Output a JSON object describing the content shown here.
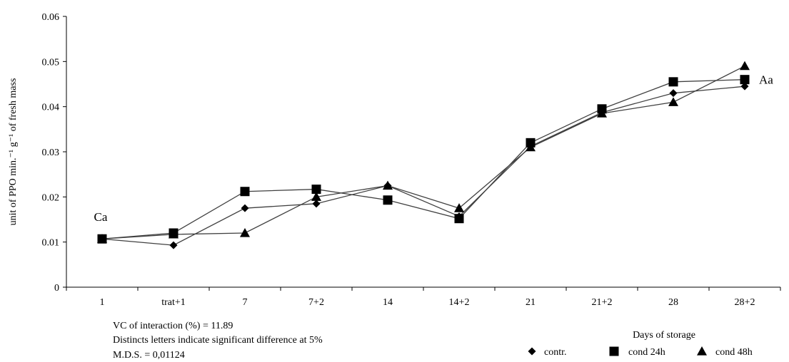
{
  "chart_data": {
    "type": "line",
    "categories": [
      "1",
      "trat+1",
      "7",
      "7+2",
      "14",
      "14+2",
      "21",
      "21+2",
      "28",
      "28+2"
    ],
    "ylabel": "unit of PPO min.⁻¹ g⁻¹ of fresh mass",
    "xlabel": "Days of storage",
    "ylim": [
      0,
      0.06
    ],
    "yticks": [
      "0",
      "0.01",
      "0.02",
      "0.03",
      "0.04",
      "0.05",
      "0.06"
    ],
    "grid": false,
    "legend_position": "bottom-right",
    "series": [
      {
        "name": "contr.",
        "marker": "diamond",
        "values": [
          0.0107,
          0.0093,
          0.0175,
          0.0185,
          0.0225,
          0.0157,
          0.0312,
          0.0387,
          0.043,
          0.0445
        ]
      },
      {
        "name": "cond 24h",
        "marker": "square",
        "values": [
          0.0107,
          0.012,
          0.0212,
          0.0217,
          0.0193,
          0.0152,
          0.032,
          0.0395,
          0.0455,
          0.046
        ]
      },
      {
        "name": "cond 48h",
        "marker": "triangle",
        "values": [
          0.0107,
          0.0117,
          0.012,
          0.02,
          0.0225,
          0.0175,
          0.031,
          0.0385,
          0.041,
          0.049
        ]
      }
    ],
    "annotations": [
      {
        "text": "Ca",
        "anchor_category": "1"
      },
      {
        "text": "Aa",
        "anchor_category": "28+2"
      }
    ],
    "notes": [
      "VC of interaction (%) = 11.89",
      "Distincts letters indicate significant difference at 5%",
      "M.D.S. = 0,01124"
    ]
  }
}
